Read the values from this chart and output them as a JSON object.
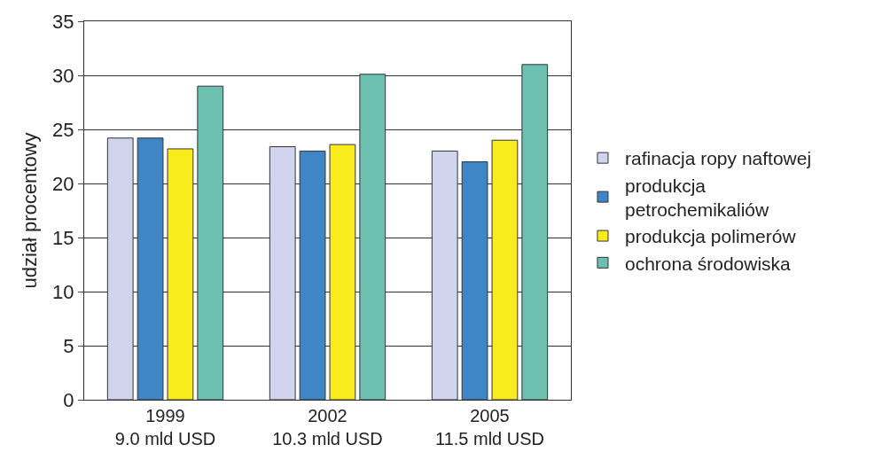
{
  "chart_data": {
    "type": "bar",
    "ylabel": "udział procentowy",
    "categories": [
      "1999\n9.0 mld USD",
      "2002\n10.3 mld USD",
      "2005\n11.5 mld USD"
    ],
    "series": [
      {
        "name": "rafinacja ropy naftowej",
        "color": "#d0d4ec",
        "values": [
          24.2,
          23.4,
          23.0
        ]
      },
      {
        "name": "produkcja\npetrochemikaliów",
        "color": "#3f86c6",
        "values": [
          24.2,
          23.0,
          22.0
        ]
      },
      {
        "name": "produkcja polimerów",
        "color": "#f8ec1c",
        "values": [
          23.2,
          23.6,
          24.0
        ]
      },
      {
        "name": "ochrona środowiska",
        "color": "#6cc0b0",
        "values": [
          29.0,
          30.1,
          31.0
        ]
      }
    ],
    "ylim": [
      0,
      35
    ],
    "yticks": [
      0,
      5,
      10,
      15,
      20,
      25,
      30,
      35
    ],
    "grid": "y",
    "legend": "right"
  }
}
